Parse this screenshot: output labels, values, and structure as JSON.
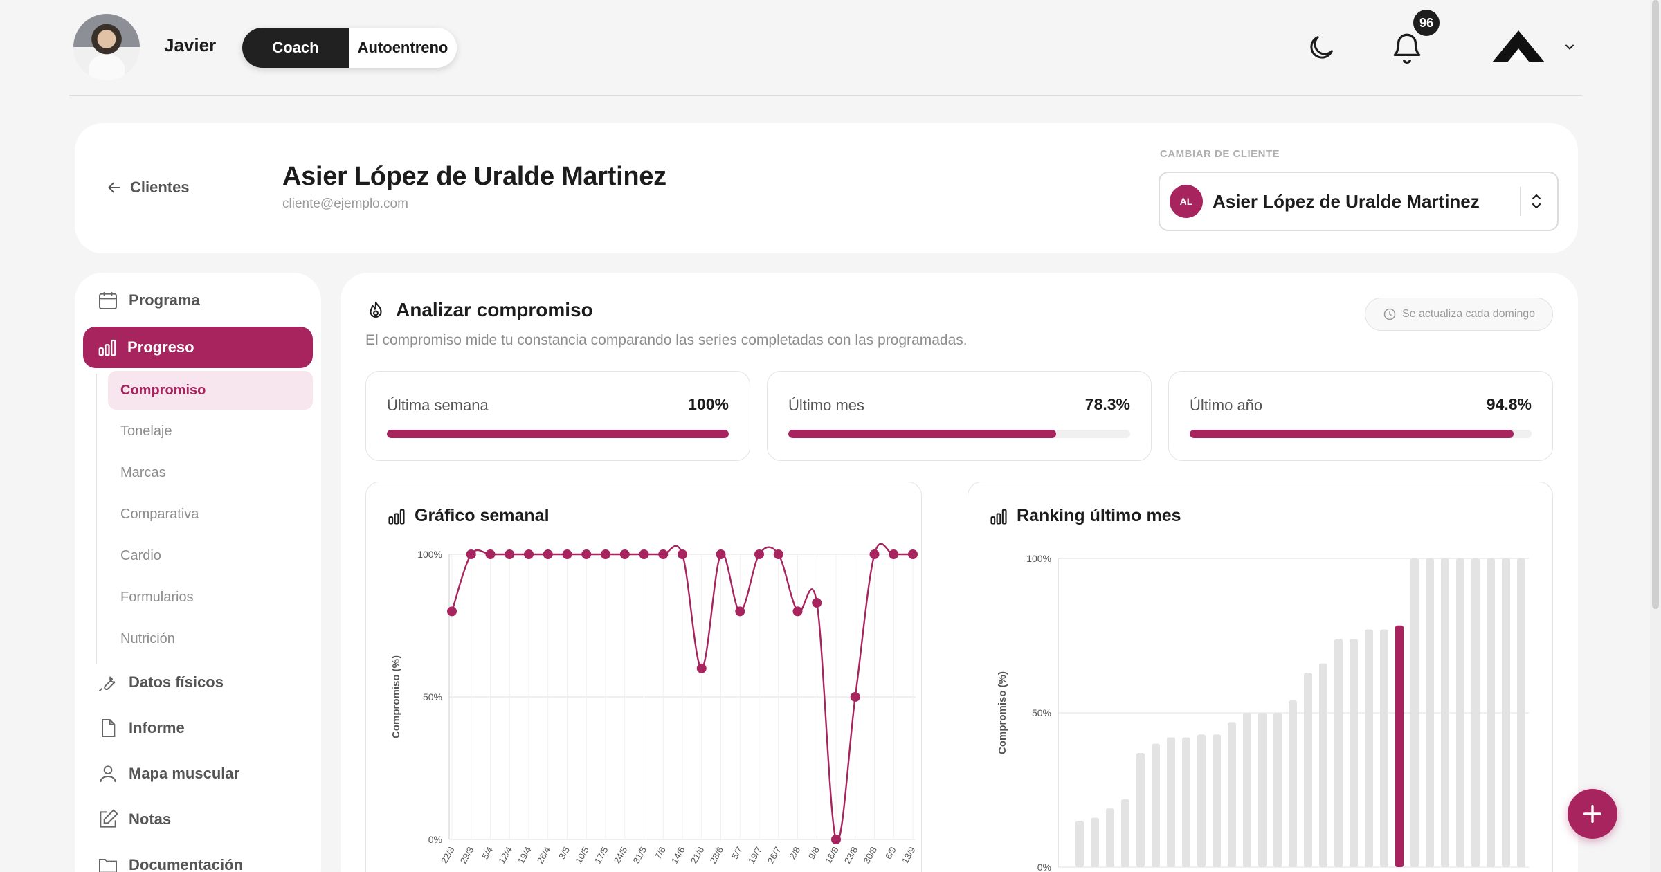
{
  "topbar": {
    "coach_name": "Javier",
    "mode_options": [
      "Coach",
      "Autoentreno"
    ],
    "notifications_count": "96",
    "icons": [
      "moon-icon",
      "bell-icon",
      "brand-logo",
      "chevron-down-icon"
    ]
  },
  "header": {
    "back_label": "Clientes",
    "client_name": "Asier López de Uralde Martinez",
    "client_email": "cliente@ejemplo.com",
    "switch_label": "CAMBIAR DE CLIENTE",
    "selected_client_initials": "AL",
    "selected_client_name": "Asier López de Uralde Martinez"
  },
  "sidebar": {
    "programa": "Programa",
    "progreso": "Progreso",
    "sub": [
      "Compromiso",
      "Tonelaje",
      "Marcas",
      "Comparativa",
      "Cardio",
      "Formularios",
      "Nutrición"
    ],
    "datos": "Datos físicos",
    "informe": "Informe",
    "mapa": "Mapa muscular",
    "notas": "Notas",
    "docs": "Documentación"
  },
  "main": {
    "title": "Analizar compromiso",
    "description": "El compromiso mide tu constancia comparando las series completadas con las programadas.",
    "update_note": "Se actualiza cada domingo",
    "stats": [
      {
        "label": "Última semana",
        "value": "100%",
        "fraction": 1.0
      },
      {
        "label": "Último mes",
        "value": "78.3%",
        "fraction": 0.783
      },
      {
        "label": "Último año",
        "value": "94.8%",
        "fraction": 0.948
      }
    ]
  },
  "colors": {
    "accent": "#a8245e",
    "bar_grey": "#e3e3e3"
  },
  "chart_data": [
    {
      "type": "line",
      "title": "Gráfico semanal",
      "ylabel": "Compromiso (%)",
      "ylim": [
        0,
        100
      ],
      "yticks": [
        "100%",
        "50%",
        "0%"
      ],
      "x": [
        "22/3",
        "29/3",
        "5/4",
        "12/4",
        "19/4",
        "26/4",
        "3/5",
        "10/5",
        "17/5",
        "24/5",
        "31/5",
        "7/6",
        "14/6",
        "21/6",
        "28/6",
        "5/7",
        "19/7",
        "26/7",
        "2/8",
        "9/8",
        "16/8",
        "23/8",
        "30/8",
        "6/9",
        "13/9"
      ],
      "values": [
        80,
        100,
        100,
        100,
        100,
        100,
        100,
        100,
        100,
        100,
        100,
        100,
        100,
        60,
        100,
        80,
        100,
        100,
        80,
        83,
        0,
        50,
        100,
        100,
        100
      ]
    },
    {
      "type": "bar",
      "title": "Ranking último mes",
      "ylabel": "Compromiso (%)",
      "ylim": [
        0,
        100
      ],
      "yticks": [
        "100%",
        "50%",
        "0%"
      ],
      "values": [
        15,
        16,
        19,
        22,
        37,
        40,
        42,
        42,
        43,
        43,
        47,
        50,
        50,
        50,
        54,
        63,
        66,
        74,
        74,
        77,
        77,
        78.3,
        100,
        100,
        100,
        100,
        100,
        100,
        100,
        100
      ],
      "highlight_index": 21
    }
  ]
}
